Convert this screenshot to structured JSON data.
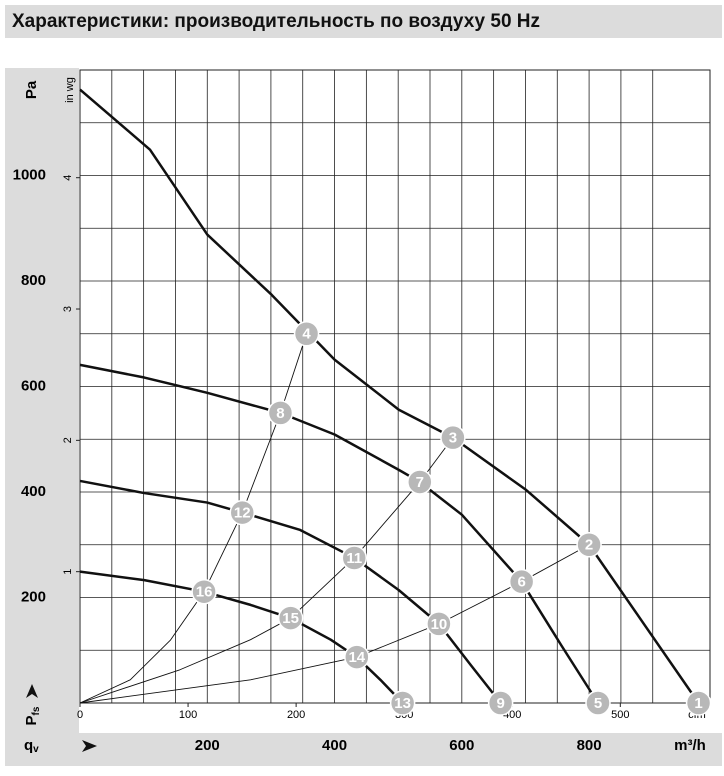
{
  "chart_data": {
    "type": "line",
    "title": "Характеристики: производительность по воздуху 50 Hz",
    "ylabel": "Pa",
    "ylabel_bottom": "P",
    "ylabel_bottom_sub": "fs",
    "xlabel": "q",
    "xlabel_sub": "v",
    "xunit": "m³/h",
    "xlim": [
      0,
      990
    ],
    "xticks": [
      200,
      400,
      600,
      800
    ],
    "ylim": [
      0,
      1200
    ],
    "yticks": [
      200,
      400,
      600,
      800,
      1000
    ],
    "xgrid": [
      50,
      100,
      150,
      200,
      250,
      300,
      350,
      400,
      450,
      500,
      550,
      600,
      650,
      700,
      750,
      800,
      850,
      900
    ],
    "ygrid": [
      100,
      200,
      300,
      400,
      500,
      600,
      700,
      800,
      900,
      1000,
      1100
    ],
    "x2label": "cfm",
    "x2lim": [
      0,
      583
    ],
    "x2ticks": [
      0,
      100,
      200,
      300,
      400,
      500
    ],
    "y2label": "in wg",
    "y2lim": [
      0,
      4.82
    ],
    "y2ticks": [
      1,
      2,
      3,
      4
    ],
    "series": [
      {
        "x": [
          0,
          110,
          200,
          301,
          400,
          501,
          586,
          701,
          800,
          882,
          972
        ],
        "y": [
          1163,
          1049,
          888,
          774,
          651,
          556,
          503,
          404,
          300,
          157,
          0
        ],
        "color": "#111111",
        "line_width": 2.5
      },
      {
        "x": [
          0,
          101,
          200,
          315,
          400,
          501,
          534,
          600,
          694,
          756,
          814
        ],
        "y": [
          641,
          617,
          588,
          550,
          509,
          442,
          419,
          357,
          230,
          110,
          0
        ],
        "color": "#111111",
        "line_width": 2.5
      },
      {
        "x": [
          0,
          101,
          200,
          255,
          346,
          431,
          501,
          564,
          614,
          661
        ],
        "y": [
          421,
          398,
          380,
          361,
          328,
          275,
          214,
          150,
          72,
          0
        ],
        "color": "#111111",
        "line_width": 2.5
      },
      {
        "x": [
          0,
          101,
          195,
          268,
          331,
          394,
          435,
          472,
          507
        ],
        "y": [
          249,
          233,
          211,
          186,
          161,
          120,
          87,
          44,
          0
        ],
        "color": "#111111",
        "line_width": 2.5
      },
      {
        "x": [
          0,
          79,
          142,
          195,
          255,
          315,
          356
        ],
        "y": [
          0,
          44,
          119,
          211,
          361,
          550,
          700
        ],
        "color": "#111111",
        "line_width": 0.9
      },
      {
        "x": [
          0,
          157,
          268,
          331,
          431,
          534,
          586
        ],
        "y": [
          0,
          63,
          120,
          161,
          275,
          419,
          503
        ],
        "color": "#111111",
        "line_width": 0.9
      },
      {
        "x": [
          0,
          268,
          435,
          564,
          694,
          800
        ],
        "y": [
          0,
          44,
          87,
          150,
          230,
          300
        ],
        "color": "#111111",
        "line_width": 0.9
      }
    ],
    "points": [
      {
        "label": "1",
        "x": 972,
        "y": 0
      },
      {
        "label": "2",
        "x": 800,
        "y": 300
      },
      {
        "label": "3",
        "x": 586,
        "y": 503
      },
      {
        "label": "4",
        "x": 356,
        "y": 700
      },
      {
        "label": "5",
        "x": 814,
        "y": 0
      },
      {
        "label": "6",
        "x": 694,
        "y": 230
      },
      {
        "label": "7",
        "x": 534,
        "y": 419
      },
      {
        "label": "8",
        "x": 315,
        "y": 550
      },
      {
        "label": "9",
        "x": 661,
        "y": 0
      },
      {
        "label": "10",
        "x": 564,
        "y": 150
      },
      {
        "label": "11",
        "x": 431,
        "y": 275
      },
      {
        "label": "12",
        "x": 255,
        "y": 361
      },
      {
        "label": "13",
        "x": 507,
        "y": 0
      },
      {
        "label": "14",
        "x": 435,
        "y": 87
      },
      {
        "label": "15",
        "x": 331,
        "y": 161
      },
      {
        "label": "16",
        "x": 195,
        "y": 211
      }
    ],
    "point_color": "#b8b8b8",
    "grid": true
  }
}
